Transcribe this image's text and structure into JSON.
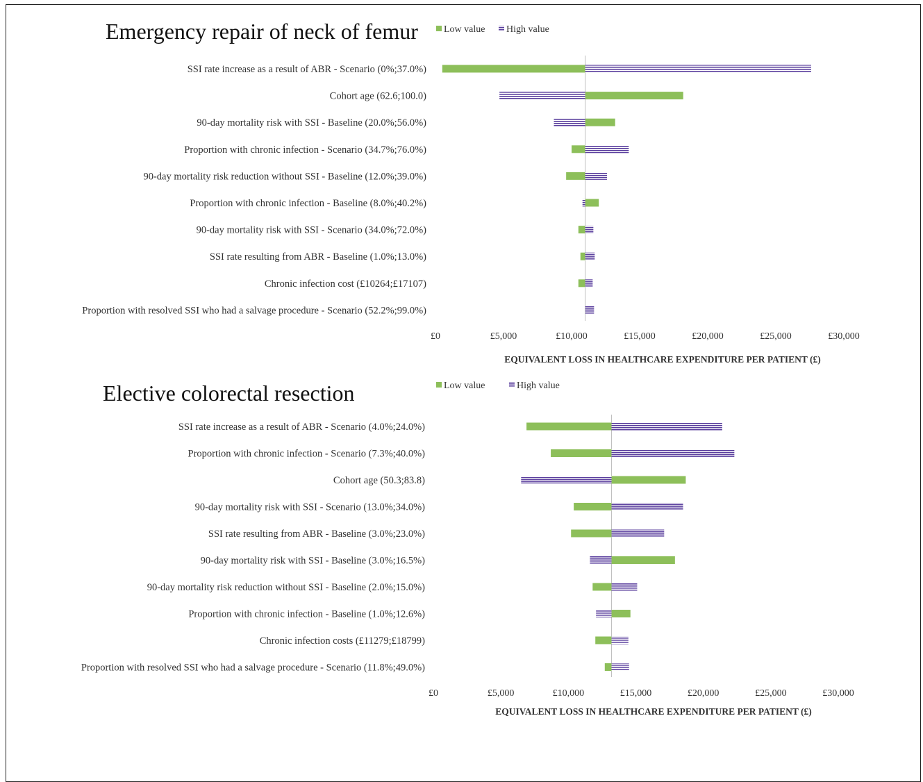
{
  "colors": {
    "low": "#8dbf5a",
    "high": "#5b3f9e",
    "axis": "#bfbfbf"
  },
  "chart_data": [
    {
      "type": "bar",
      "orientation": "horizontal-tornado",
      "title": "Emergency repair of neck of femur",
      "xlabel": "EQUIVALENT LOSS IN HEALTHCARE EXPENDITURE PER PATIENT (£)",
      "xlim": [
        0,
        30000
      ],
      "xticks": [
        "£0",
        "£5,000",
        "£10,000",
        "£15,000",
        "£20,000",
        "£25,000",
        "£30,000"
      ],
      "base": 11000,
      "legend": [
        "Low value",
        "High value"
      ],
      "legend_position": "top",
      "categories": [
        "SSI rate increase as a result of ABR - Scenario (0%;37.0%)",
        "Cohort age (62.6;100.0)",
        "90-day mortality risk with SSI - Baseline (20.0%;56.0%)",
        "Proportion with chronic infection - Scenario (34.7%;76.0%)",
        "90-day mortality risk  reduction without SSI - Baseline (12.0%;39.0%)",
        "Proportion with chronic infection - Baseline (8.0%;40.2%)",
        "90-day mortality risk with SSI - Scenario (34.0%;72.0%)",
        "SSI rate resulting from ABR - Baseline (1.0%;13.0%)",
        "Chronic infection cost (£10264;£17107)",
        "Proportion with resolved SSI who had a salvage procedure - Scenario (52.2%;99.0%)"
      ],
      "series": [
        {
          "name": "Low value",
          "values": [
            500,
            18200,
            13200,
            10000,
            9600,
            12000,
            10500,
            10650,
            10500,
            11000
          ]
        },
        {
          "name": "High value",
          "values": [
            27600,
            4700,
            8700,
            14200,
            12600,
            10800,
            11600,
            11700,
            11550,
            11650
          ]
        }
      ]
    },
    {
      "type": "bar",
      "orientation": "horizontal-tornado",
      "title": "Elective colorectal resection",
      "xlabel": "EQUIVALENT LOSS IN HEALTHCARE EXPENDITURE PER PATIENT (£)",
      "xlim": [
        0,
        30000
      ],
      "xticks": [
        "£0",
        "£5,000",
        "£10,000",
        "£15,000",
        "£20,000",
        "£25,000",
        "£30,000"
      ],
      "base": 13200,
      "legend": [
        "Low value",
        "High value"
      ],
      "legend_position": "top",
      "categories": [
        "SSI rate increase as a result of ABR - Scenario (4.0%;24.0%)",
        "Proportion with chronic infection - Scenario (7.3%;40.0%)",
        "Cohort age (50.3;83.8)",
        "90-day mortality risk with SSI  - Scenario (13.0%;34.0%)",
        "SSI rate resulting from ABR  - Baseline (3.0%;23.0%)",
        "90-day mortality risk with SSI - Baseline (3.0%;16.5%)",
        "90-day mortality risk reduction without SSI - Baseline (2.0%;15.0%)",
        "Proportion with chronic infection - Baseline (1.0%;12.6%)",
        "Chronic infection costs (£11279;£18799)",
        "Proportion with resolved SSI who had a salvage procedure - Scenario (11.8%;49.0%)"
      ],
      "series": [
        {
          "name": "Low value",
          "values": [
            6900,
            8700,
            18700,
            10400,
            10200,
            17900,
            11800,
            14600,
            12000,
            12700
          ]
        },
        {
          "name": "High value",
          "values": [
            21400,
            22300,
            6500,
            18500,
            17100,
            11600,
            15100,
            12050,
            14450,
            14500
          ]
        }
      ]
    }
  ]
}
